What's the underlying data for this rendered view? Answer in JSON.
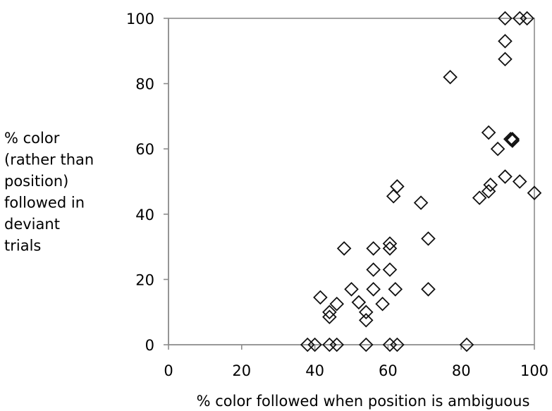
{
  "chart_data": {
    "type": "scatter",
    "title": "",
    "xlabel": "% color followed when position is ambiguous",
    "ylabel_lines": [
      "% color",
      "(rather than",
      "position)",
      "followed in",
      "deviant",
      "trials"
    ],
    "xlim": [
      0,
      100
    ],
    "ylim": [
      0,
      100
    ],
    "xticks": [
      "0",
      "20",
      "40",
      "60",
      "80",
      "100"
    ],
    "yticks": [
      "0",
      "20",
      "40",
      "60",
      "80",
      "100"
    ],
    "grid": false,
    "marker": "diamond-open",
    "series": [
      {
        "points": [
          {
            "x": 92,
            "y": 100
          },
          {
            "x": 96,
            "y": 100
          },
          {
            "x": 98,
            "y": 100
          },
          {
            "x": 92,
            "y": 93
          },
          {
            "x": 92,
            "y": 87.5
          },
          {
            "x": 77,
            "y": 82
          },
          {
            "x": 87.5,
            "y": 65
          },
          {
            "x": 94,
            "y": 63
          },
          {
            "x": 94,
            "y": 62.5
          },
          {
            "x": 93.5,
            "y": 63
          },
          {
            "x": 90,
            "y": 60
          },
          {
            "x": 92,
            "y": 51.5
          },
          {
            "x": 96,
            "y": 50
          },
          {
            "x": 100,
            "y": 46.5
          },
          {
            "x": 88,
            "y": 49
          },
          {
            "x": 87.5,
            "y": 47
          },
          {
            "x": 85,
            "y": 45
          },
          {
            "x": 62.5,
            "y": 48.5
          },
          {
            "x": 61.5,
            "y": 45.5
          },
          {
            "x": 69,
            "y": 43.5
          },
          {
            "x": 71,
            "y": 32.5
          },
          {
            "x": 60.5,
            "y": 31
          },
          {
            "x": 60.5,
            "y": 29.5
          },
          {
            "x": 48,
            "y": 29.5
          },
          {
            "x": 56,
            "y": 29.5
          },
          {
            "x": 56,
            "y": 23
          },
          {
            "x": 60.5,
            "y": 23
          },
          {
            "x": 50,
            "y": 17
          },
          {
            "x": 56,
            "y": 17
          },
          {
            "x": 62,
            "y": 17
          },
          {
            "x": 71,
            "y": 17
          },
          {
            "x": 41.5,
            "y": 14.5
          },
          {
            "x": 52,
            "y": 13
          },
          {
            "x": 46,
            "y": 12.5
          },
          {
            "x": 58.5,
            "y": 12.5
          },
          {
            "x": 54,
            "y": 10
          },
          {
            "x": 44,
            "y": 10
          },
          {
            "x": 44,
            "y": 8.5
          },
          {
            "x": 54,
            "y": 7.5
          },
          {
            "x": 38,
            "y": 0
          },
          {
            "x": 40,
            "y": 0
          },
          {
            "x": 44,
            "y": 0
          },
          {
            "x": 46,
            "y": 0
          },
          {
            "x": 54,
            "y": 0
          },
          {
            "x": 60.5,
            "y": 0
          },
          {
            "x": 62.5,
            "y": 0
          },
          {
            "x": 81.5,
            "y": 0
          }
        ]
      }
    ]
  }
}
